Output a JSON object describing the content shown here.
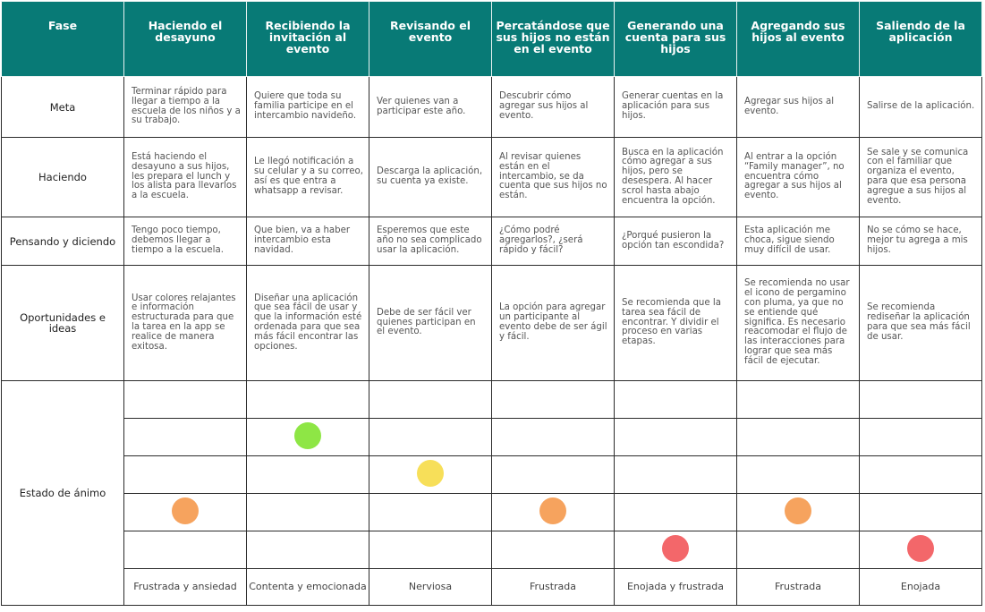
{
  "colors": {
    "header_bg": "#087a76",
    "happy": "#8ee645",
    "nervous": "#f7df59",
    "frustrated": "#f6a35e",
    "angry": "#f3676a"
  },
  "header": {
    "fase_label": "Fase",
    "phases": [
      "Haciendo el desayuno",
      "Recibiendo la invitación al evento",
      "Revisando el evento",
      "Percatándose que sus hijos no están en el evento",
      "Generando una cuenta para sus hijos",
      "Agregando sus hijos al evento",
      "Saliendo de la aplicación"
    ]
  },
  "rows": {
    "meta": {
      "label": "Meta",
      "cells": [
        "Terminar rápido para llegar a tiempo a la escuela de los niños y a su trabajo.",
        "Quiere que toda su familia participe en el intercambio navideño.",
        "Ver quienes van a participar este año.",
        "Descubrir cómo agregar sus hijos al evento.",
        "Generar cuentas en la aplicación para sus hijos.",
        "Agregar sus hijos al evento.",
        "Salirse de la aplicación."
      ]
    },
    "haciendo": {
      "label": "Haciendo",
      "cells": [
        "Está haciendo el desayuno a sus hijos, les prepara el lunch y los alista para llevarlos a la escuela.",
        "Le llegó notificación a su celular y a su correo, así es que entra a whatsapp a revisar.",
        "Descarga la aplicación, su cuenta ya existe.",
        "Al revisar quienes están en el intercambio, se da cuenta que sus hijos no están.",
        "Busca en la aplicación cómo agregar a sus hijos, pero se desespera. Al hacer scrol hasta abajo encuentra la opción.",
        "Al entrar a la opción “Family manager”, no encuentra cómo agregar a sus hijos al evento.",
        "Se sale y se comunica con el familiar que organiza el evento, para que esa persona agregue a sus hijos al evento."
      ]
    },
    "pensando": {
      "label": "Pensando y diciendo",
      "cells": [
        "Tengo poco tiempo, debemos llegar a tiempo a la escuela.",
        "Que bien, va a haber intercambio esta navidad.",
        "Esperemos que este año no sea complicado usar la aplicación.",
        "¿Cómo podré agregarlos?, ¿será rápido y fácil?",
        "¿Porqué pusieron la opción tan escondida?",
        "Esta aplicación me choca, sigue siendo muy difícil de usar.",
        "No se cómo se hace, mejor tu agrega a mis hijos."
      ]
    },
    "oportunidades": {
      "label": "Oportunidades e ideas",
      "cells": [
        "Usar colores relajantes e información estructurada para que la tarea en la app se realice de manera exitosa.",
        "Diseñar una aplicación que sea fácil de usar y que la información esté ordenada para que sea más fácil encontrar las opciones.",
        "Debe de ser fácil ver quienes participan en el evento.",
        "La opción para agregar un participante al evento debe de ser ágil y fácil.",
        "Se recomienda que la tarea sea fácil de encontrar. Y dividir el proceso en varias etapas.",
        "Se recomienda no usar el icono de pergamino con pluma, ya que no se entiende qué significa. Es necesario reacomodar el flujo de las interacciones para lograr que sea más fácil de ejecutar.",
        "Se recomienda rediseñar la aplicación para que sea más fácil de usar."
      ]
    },
    "estado": {
      "label": "Estado de ánimo",
      "levels": 5,
      "moods": [
        {
          "level": 4,
          "color_key": "frustrated",
          "label": "Frustrada y ansiedad"
        },
        {
          "level": 2,
          "color_key": "happy",
          "label": "Contenta y emocionada"
        },
        {
          "level": 3,
          "color_key": "nervous",
          "label": "Nerviosa"
        },
        {
          "level": 4,
          "color_key": "frustrated",
          "label": "Frustrada"
        },
        {
          "level": 5,
          "color_key": "angry",
          "label": "Enojada y frustrada"
        },
        {
          "level": 4,
          "color_key": "frustrated",
          "label": "Frustrada"
        },
        {
          "level": 5,
          "color_key": "angry",
          "label": "Enojada"
        }
      ]
    }
  }
}
